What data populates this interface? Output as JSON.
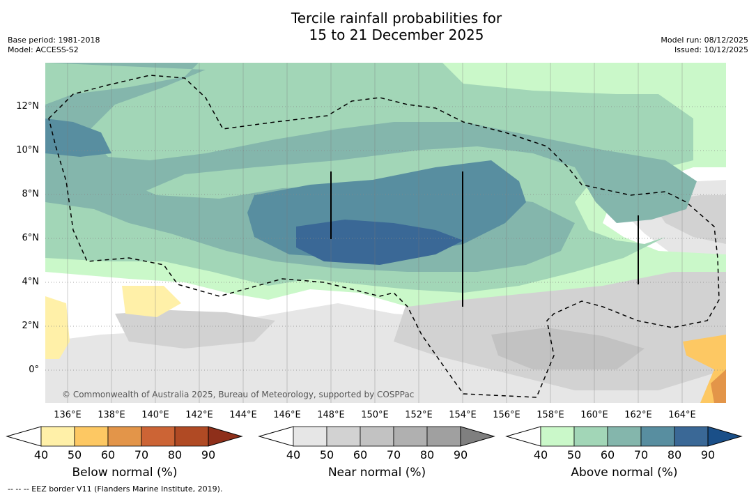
{
  "title_line1": "Tercile rainfall probabilities for",
  "title_line2": "15 to 21 December 2025",
  "meta_left": [
    "Base period: 1981-2018",
    "Model: ACCESS-S2"
  ],
  "meta_right": [
    "Model run: 08/12/2025",
    "Issued: 10/12/2025"
  ],
  "latitude_ticks": [
    "12°N",
    "10°N",
    "8°N",
    "6°N",
    "4°N",
    "2°N",
    "0°"
  ],
  "longitude_ticks": [
    "136°E",
    "138°E",
    "140°E",
    "142°E",
    "144°E",
    "146°E",
    "148°E",
    "150°E",
    "152°E",
    "154°E",
    "156°E",
    "158°E",
    "160°E",
    "162°E",
    "164°E"
  ],
  "copyright": "© Commonwealth of Australia 2025, Bureau of Meteorology, supported by COSPPac",
  "colorbars": [
    {
      "label": "Below normal (%)",
      "ticks": [
        "40",
        "50",
        "60",
        "70",
        "80",
        "90"
      ],
      "colors": [
        "#fff0a8",
        "#fdc863",
        "#e39549",
        "#cc6435",
        "#b04a24",
        "#8e2f1a"
      ]
    },
    {
      "label": "Near normal (%)",
      "ticks": [
        "40",
        "50",
        "60",
        "70",
        "80",
        "90"
      ],
      "colors": [
        "#e6e6e6",
        "#d2d2d2",
        "#c2c2c2",
        "#b0b0b0",
        "#a0a0a0",
        "#7f7f7f"
      ]
    },
    {
      "label": "Above normal (%)",
      "ticks": [
        "40",
        "50",
        "60",
        "70",
        "80",
        "90"
      ],
      "colors": [
        "#caf8c9",
        "#a2d6b7",
        "#84b6ac",
        "#588ea0",
        "#3a6896",
        "#1a4f88"
      ]
    }
  ],
  "footnote": "--  --  -- EEZ border V11 (Flanders Marine Institute, 2019)."
}
